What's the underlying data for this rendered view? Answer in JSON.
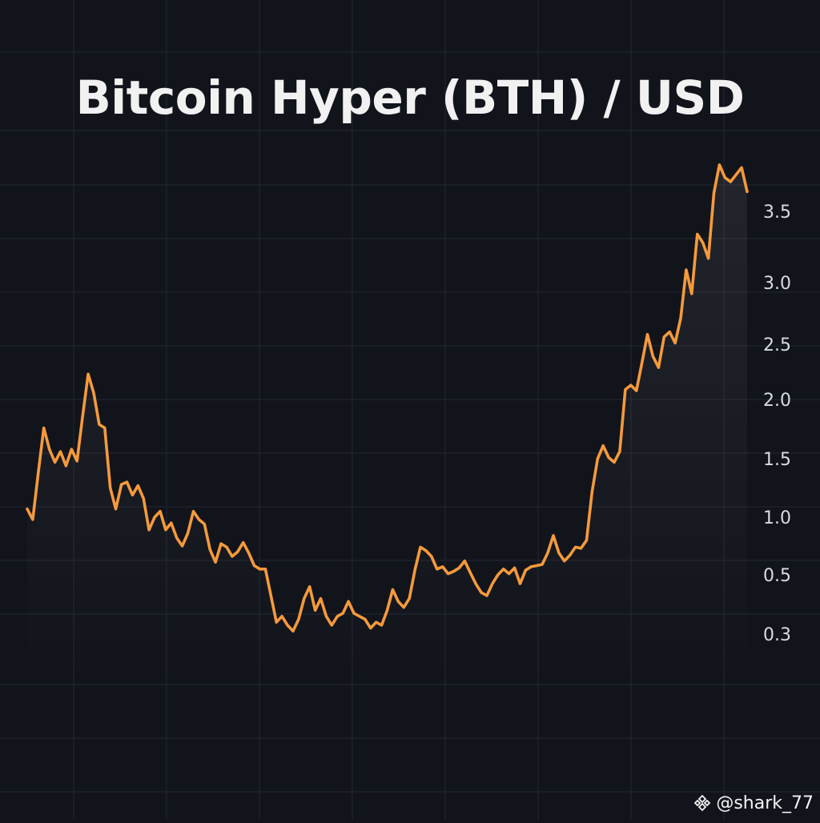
{
  "title": "Bitcoin Hyper (BTH) / USD",
  "watermark": "@shark_77",
  "watermark_icon": "binance-logo-icon",
  "colors": {
    "background": "#12141c",
    "grid": "#232733",
    "line": "#f59a3c",
    "axis_text": "#d8dbe2",
    "title": "#f1f1f1"
  },
  "chart_data": {
    "type": "line",
    "title": "Bitcoin Hyper (BTH) / USD",
    "xlabel": "",
    "ylabel": "",
    "y_ticks": [
      "3.5",
      "3.0",
      "2.5",
      "2.0",
      "1.5",
      "1.0",
      "0.5",
      "0.3"
    ],
    "y_axis_position": "right",
    "grid": true,
    "series": [
      {
        "values": [
          1.07,
          0.98,
          1.38,
          1.76,
          1.58,
          1.47,
          1.56,
          1.44,
          1.58,
          1.48,
          1.86,
          2.23,
          2.06,
          1.79,
          1.76,
          1.25,
          1.07,
          1.28,
          1.3,
          1.19,
          1.27,
          1.16,
          0.89,
          1.0,
          1.05,
          0.89,
          0.95,
          0.82,
          0.75,
          0.86,
          1.05,
          0.98,
          0.94,
          0.72,
          0.61,
          0.77,
          0.74,
          0.66,
          0.7,
          0.78,
          0.69,
          0.58,
          0.55,
          0.55,
          0.43,
          0.34,
          0.36,
          0.33,
          0.31,
          0.35,
          0.42,
          0.46,
          0.38,
          0.42,
          0.36,
          0.33,
          0.36,
          0.37,
          0.41,
          0.37,
          0.36,
          0.35,
          0.32,
          0.34,
          0.33,
          0.38,
          0.45,
          0.41,
          0.39,
          0.42,
          0.54,
          0.74,
          0.71,
          0.66,
          0.55,
          0.57,
          0.51,
          0.53,
          0.56,
          0.62,
          0.52,
          0.47,
          0.44,
          0.43,
          0.47,
          0.5,
          0.55,
          0.51,
          0.56,
          0.47,
          0.54,
          0.57,
          0.58,
          0.59,
          0.69,
          0.84,
          0.69,
          0.62,
          0.67,
          0.74,
          0.73,
          0.8,
          1.22,
          1.5,
          1.61,
          1.51,
          1.47,
          1.56,
          2.09,
          2.13,
          2.08,
          2.33,
          2.58,
          2.39,
          2.29,
          2.56,
          2.6,
          2.51,
          2.71,
          3.09,
          2.91,
          3.34,
          3.28,
          3.17,
          3.63,
          3.83,
          3.74,
          3.71,
          3.76,
          3.81,
          3.64
        ]
      }
    ]
  }
}
